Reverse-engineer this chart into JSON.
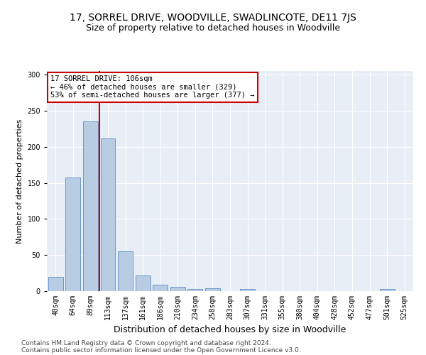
{
  "title1": "17, SORREL DRIVE, WOODVILLE, SWADLINCOTE, DE11 7JS",
  "title2": "Size of property relative to detached houses in Woodville",
  "xlabel": "Distribution of detached houses by size in Woodville",
  "ylabel": "Number of detached properties",
  "categories": [
    "40sqm",
    "64sqm",
    "89sqm",
    "113sqm",
    "137sqm",
    "161sqm",
    "186sqm",
    "210sqm",
    "234sqm",
    "258sqm",
    "283sqm",
    "307sqm",
    "331sqm",
    "355sqm",
    "380sqm",
    "404sqm",
    "428sqm",
    "452sqm",
    "477sqm",
    "501sqm",
    "525sqm"
  ],
  "values": [
    20,
    157,
    235,
    212,
    55,
    22,
    9,
    6,
    3,
    4,
    0,
    3,
    0,
    0,
    0,
    0,
    0,
    0,
    0,
    3,
    0
  ],
  "bar_color": "#b8cce4",
  "bar_edge_color": "#5b8dc8",
  "vline_x": 2.5,
  "vline_color": "#cc0000",
  "annotation_title": "17 SORREL DRIVE: 106sqm",
  "annotation_line1": "← 46% of detached houses are smaller (329)",
  "annotation_line2": "53% of semi-detached houses are larger (377) →",
  "annotation_box_color": "#ffffff",
  "annotation_box_edge": "#cc0000",
  "footer1": "Contains HM Land Registry data © Crown copyright and database right 2024.",
  "footer2": "Contains public sector information licensed under the Open Government Licence v3.0.",
  "bg_color": "#e8eef6",
  "ylim": [
    0,
    305
  ],
  "title1_fontsize": 10,
  "title2_fontsize": 9,
  "xlabel_fontsize": 9,
  "ylabel_fontsize": 8,
  "tick_fontsize": 7,
  "annot_fontsize": 7.5,
  "footer_fontsize": 6.5
}
